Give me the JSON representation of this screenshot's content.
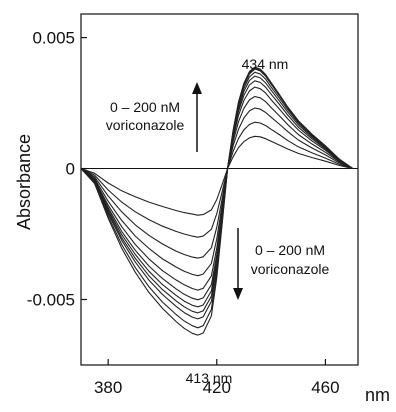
{
  "chart_data": {
    "type": "line",
    "title": "",
    "xlabel": "nm",
    "ylabel": "Absorbance",
    "xlim": [
      370,
      472
    ],
    "ylim": [
      -0.0075,
      0.0059
    ],
    "x_ticks": [
      380,
      420,
      460
    ],
    "x_tick_labels": [
      "380",
      "420",
      "460"
    ],
    "y_ticks": [
      0.005,
      0,
      -0.005
    ],
    "y_tick_labels": [
      "0.005",
      "0",
      "-0.005"
    ],
    "grid": false,
    "zero_line": true,
    "annotations": {
      "peak": "434 nm",
      "trough": "413 nm",
      "up_text_1": "0 – 200 nM",
      "up_text_2": "voriconazole",
      "down_text_1": "0 – 200 nM",
      "down_text_2": "voriconazole"
    },
    "x": [
      370,
      375,
      380,
      385,
      390,
      395,
      400,
      405,
      408,
      411,
      413,
      415,
      418,
      420,
      422,
      424,
      426,
      428,
      430,
      432,
      434,
      436,
      438,
      440,
      443,
      446,
      450,
      455,
      460,
      465,
      470
    ],
    "series": [
      {
        "values": [
          0,
          -0.00018,
          -0.00055,
          -0.00085,
          -0.00108,
          -0.00128,
          -0.00145,
          -0.0016,
          -0.00168,
          -0.00174,
          -0.00178,
          -0.00176,
          -0.00158,
          -0.00118,
          -0.0006,
          0,
          0.00045,
          0.0008,
          0.00103,
          0.00117,
          0.00123,
          0.00121,
          0.00114,
          0.00104,
          0.0009,
          0.00075,
          0.00058,
          0.00042,
          0.00028,
          0.00012,
          0
        ]
      },
      {
        "values": [
          0,
          -0.00025,
          -0.00082,
          -0.00128,
          -0.00165,
          -0.00195,
          -0.0022,
          -0.0024,
          -0.0025,
          -0.00258,
          -0.00262,
          -0.00258,
          -0.00232,
          -0.00172,
          -0.00088,
          0,
          0.00065,
          0.00115,
          0.00148,
          0.00168,
          0.00177,
          0.00174,
          0.00164,
          0.0015,
          0.0013,
          0.00108,
          0.00083,
          0.0006,
          0.0004,
          0.00017,
          0
        ]
      },
      {
        "values": [
          0,
          -0.00032,
          -0.00105,
          -0.00165,
          -0.00215,
          -0.00255,
          -0.00288,
          -0.00315,
          -0.00328,
          -0.00338,
          -0.00342,
          -0.00337,
          -0.00302,
          -0.00224,
          -0.00114,
          0,
          0.00086,
          0.0015,
          0.00193,
          0.0022,
          0.00231,
          0.00227,
          0.00214,
          0.00196,
          0.0017,
          0.00142,
          0.00109,
          0.00079,
          0.00052,
          0.00022,
          0
        ]
      },
      {
        "values": [
          0,
          -0.00038,
          -0.00125,
          -0.00198,
          -0.00258,
          -0.00305,
          -0.00345,
          -0.00376,
          -0.00392,
          -0.00404,
          -0.00409,
          -0.00403,
          -0.00362,
          -0.00268,
          -0.00136,
          0,
          0.00102,
          0.00179,
          0.0023,
          0.00262,
          0.00275,
          0.0027,
          0.00255,
          0.00233,
          0.00202,
          0.00169,
          0.0013,
          0.00094,
          0.00062,
          0.00026,
          0
        ]
      },
      {
        "values": [
          0,
          -0.00043,
          -0.0014,
          -0.00222,
          -0.0029,
          -0.00345,
          -0.0039,
          -0.00425,
          -0.00444,
          -0.00458,
          -0.00464,
          -0.00457,
          -0.0041,
          -0.00303,
          -0.00154,
          0,
          0.00115,
          0.00203,
          0.0026,
          0.00296,
          0.00311,
          0.00305,
          0.00288,
          0.00263,
          0.00228,
          0.00191,
          0.00147,
          0.00106,
          0.0007,
          0.00029,
          0
        ]
      },
      {
        "values": [
          0,
          -0.00046,
          -0.0015,
          -0.0024,
          -0.00312,
          -0.00372,
          -0.0042,
          -0.00459,
          -0.0048,
          -0.00495,
          -0.00501,
          -0.00494,
          -0.00443,
          -0.00328,
          -0.00166,
          0,
          0.00124,
          0.00218,
          0.0028,
          0.00319,
          0.00335,
          0.00329,
          0.0031,
          0.00284,
          0.00246,
          0.00206,
          0.00158,
          0.00114,
          0.00075,
          0.00032,
          0
        ]
      },
      {
        "values": [
          0,
          -0.00048,
          -0.00158,
          -0.00252,
          -0.00328,
          -0.00392,
          -0.00443,
          -0.00484,
          -0.00506,
          -0.00522,
          -0.00528,
          -0.00521,
          -0.00467,
          -0.00345,
          -0.00175,
          0,
          0.00131,
          0.00229,
          0.00295,
          0.00336,
          0.00353,
          0.00346,
          0.00327,
          0.00299,
          0.00259,
          0.00217,
          0.00167,
          0.0012,
          0.00079,
          0.00034,
          0
        ]
      },
      {
        "values": [
          0,
          -0.0005,
          -0.00165,
          -0.00264,
          -0.00343,
          -0.00409,
          -0.00462,
          -0.00505,
          -0.00528,
          -0.00545,
          -0.00551,
          -0.00543,
          -0.00487,
          -0.0036,
          -0.00183,
          0,
          0.00136,
          0.00239,
          0.00307,
          0.0035,
          0.00368,
          0.00361,
          0.00341,
          0.00311,
          0.0027,
          0.00226,
          0.00174,
          0.00125,
          0.00082,
          0.00035,
          0
        ]
      },
      {
        "values": [
          0,
          -0.00052,
          -0.00172,
          -0.00274,
          -0.00357,
          -0.00426,
          -0.00481,
          -0.00526,
          -0.0055,
          -0.00567,
          -0.00574,
          -0.00566,
          -0.00507,
          -0.00375,
          -0.0019,
          0,
          0.0014,
          0.00246,
          0.00317,
          0.00361,
          0.0038,
          0.00373,
          0.00352,
          0.00322,
          0.00279,
          0.00233,
          0.00179,
          0.00129,
          0.00085,
          0.00036,
          0
        ]
      },
      {
        "values": [
          0,
          -0.00055,
          -0.00182,
          -0.0029,
          -0.00378,
          -0.00451,
          -0.0051,
          -0.00557,
          -0.00582,
          -0.006,
          -0.00608,
          -0.006,
          -0.00537,
          -0.00397,
          -0.00201,
          0,
          0.00144,
          0.00252,
          0.00323,
          0.00366,
          0.00383,
          0.00376,
          0.00355,
          0.00325,
          0.00281,
          0.00235,
          0.00181,
          0.0013,
          0.00086,
          0.00037,
          0
        ]
      },
      {
        "values": [
          0,
          -0.00057,
          -0.0019,
          -0.00304,
          -0.00396,
          -0.00473,
          -0.00534,
          -0.00584,
          -0.0061,
          -0.00629,
          -0.00636,
          -0.00628,
          -0.00562,
          -0.00416,
          -0.0021,
          0,
          0.00145,
          0.00254,
          0.00326,
          0.0037,
          0.00387,
          0.0038,
          0.00359,
          0.00328,
          0.00284,
          0.00237,
          0.00183,
          0.00132,
          0.00087,
          0.00037,
          0
        ]
      }
    ]
  }
}
